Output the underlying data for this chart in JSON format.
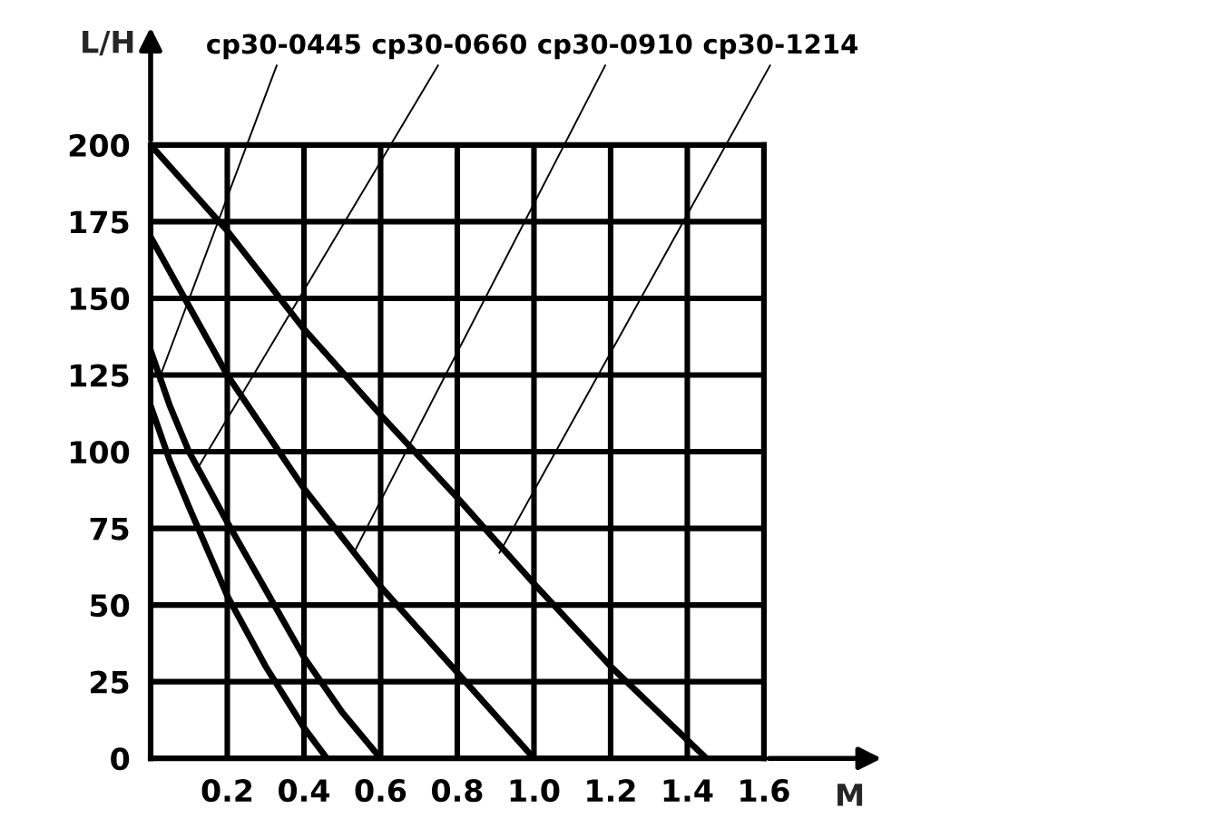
{
  "chart_data": {
    "type": "line",
    "xlabel": "M",
    "ylabel": "L/H",
    "series": [
      {
        "color": "#000000",
        "x": [
          0,
          0.05,
          0.1,
          0.2,
          0.3,
          0.4,
          0.46
        ],
        "values": [
          115,
          97,
          82,
          53,
          30,
          10,
          0
        ]
      },
      {
        "color": "#000000",
        "x": [
          0,
          0.05,
          0.1,
          0.2,
          0.3,
          0.4,
          0.5,
          0.6
        ],
        "values": [
          133,
          115,
          100,
          77,
          55,
          33,
          15,
          0
        ]
      },
      {
        "color": "#000000",
        "x": [
          0,
          0.2,
          0.4,
          0.6,
          0.8,
          1.0
        ],
        "values": [
          170,
          125,
          88,
          56,
          28,
          0
        ]
      },
      {
        "color": "#000000",
        "x": [
          0,
          0.2,
          0.4,
          0.6,
          0.8,
          1.0,
          1.2,
          1.45
        ],
        "values": [
          200,
          172,
          140,
          112,
          85,
          57,
          30,
          0
        ]
      }
    ],
    "annotations": [
      {
        "text": "cp30-0445",
        "x": 0.02,
        "y": 123
      },
      {
        "text": "cp30-0660",
        "x": 0.12,
        "y": 94
      },
      {
        "text": "cp30-0910",
        "x": 0.53,
        "y": 67
      },
      {
        "text": "cp30-1214",
        "x": 0.91,
        "y": 67
      }
    ],
    "xlim": [
      0,
      1.6
    ],
    "ylim": [
      0,
      200
    ],
    "xticks": [
      0.2,
      0.4,
      0.6,
      0.8,
      "1.0",
      1.2,
      1.4,
      1.6
    ],
    "yticks": [
      0,
      25,
      50,
      75,
      100,
      125,
      150,
      175,
      200
    ],
    "grid": true,
    "line_style": "solid",
    "marker": "none"
  }
}
